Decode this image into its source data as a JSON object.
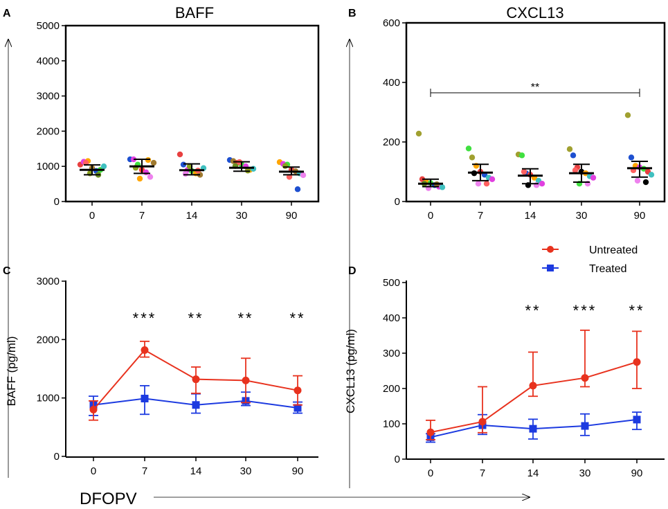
{
  "chart_data": [
    {
      "id": "A",
      "panel_label": "A",
      "type": "scatter",
      "title": "BAFF",
      "categories": [
        "0",
        "7",
        "14",
        "30",
        "90"
      ],
      "yticks": [
        "0",
        "1000",
        "2000",
        "3000",
        "4000",
        "5000"
      ],
      "ylim": [
        0,
        5000
      ],
      "means": [
        900,
        1000,
        890,
        960,
        850
      ],
      "err_low": [
        760,
        800,
        760,
        860,
        760
      ],
      "err_high": [
        1040,
        1200,
        1070,
        1130,
        980
      ],
      "points": [
        [
          {
            "v": 1050,
            "c": "#e84040"
          },
          {
            "v": 1130,
            "c": "#e040e0"
          },
          {
            "v": 1150,
            "c": "#ffa500"
          },
          {
            "v": 950,
            "c": "#a07a30"
          },
          {
            "v": 870,
            "c": "#1e50d0"
          },
          {
            "v": 900,
            "c": "#40e040"
          },
          {
            "v": 1000,
            "c": "#40c0c0"
          },
          {
            "v": 800,
            "c": "#8aa020"
          },
          {
            "v": 760,
            "c": "#6b8e23"
          },
          {
            "v": 1100,
            "c": "#ff6060"
          }
        ],
        [
          {
            "v": 1200,
            "c": "#1e50d0"
          },
          {
            "v": 1200,
            "c": "#e040e0"
          },
          {
            "v": 1050,
            "c": "#40e040"
          },
          {
            "v": 900,
            "c": "#ff4040"
          },
          {
            "v": 830,
            "c": "#e040e0"
          },
          {
            "v": 700,
            "c": "#ee82ee"
          },
          {
            "v": 1100,
            "c": "#a07a30"
          },
          {
            "v": 650,
            "c": "#ffa500"
          },
          {
            "v": 1180,
            "c": "#ffa500"
          },
          {
            "v": 960,
            "c": "#8aa020"
          }
        ],
        [
          {
            "v": 1340,
            "c": "#e84040"
          },
          {
            "v": 1050,
            "c": "#1e50d0"
          },
          {
            "v": 900,
            "c": "#e040e0"
          },
          {
            "v": 870,
            "c": "#40e040"
          },
          {
            "v": 800,
            "c": "#ffa500"
          },
          {
            "v": 760,
            "c": "#a07a30"
          },
          {
            "v": 950,
            "c": "#40c0c0"
          },
          {
            "v": 1000,
            "c": "#8aa020"
          },
          {
            "v": 880,
            "c": "#ff6060"
          },
          {
            "v": 790,
            "c": "#ee82ee"
          }
        ],
        [
          {
            "v": 1180,
            "c": "#1e50d0"
          },
          {
            "v": 1150,
            "c": "#a07a30"
          },
          {
            "v": 1100,
            "c": "#e84040"
          },
          {
            "v": 1050,
            "c": "#40e040"
          },
          {
            "v": 1000,
            "c": "#e040e0"
          },
          {
            "v": 900,
            "c": "#ffa500"
          },
          {
            "v": 930,
            "c": "#40c0c0"
          },
          {
            "v": 1120,
            "c": "#ff6060"
          },
          {
            "v": 880,
            "c": "#8aa020"
          },
          {
            "v": 1010,
            "c": "#6b8e23"
          }
        ],
        [
          {
            "v": 1120,
            "c": "#ffa500"
          },
          {
            "v": 1070,
            "c": "#e040e0"
          },
          {
            "v": 1050,
            "c": "#40e040"
          },
          {
            "v": 900,
            "c": "#e84040"
          },
          {
            "v": 860,
            "c": "#a07a30"
          },
          {
            "v": 800,
            "c": "#40c0c0"
          },
          {
            "v": 750,
            "c": "#ee82ee"
          },
          {
            "v": 700,
            "c": "#ff6060"
          },
          {
            "v": 350,
            "c": "#1e50d0"
          },
          {
            "v": 1010,
            "c": "#8aa020"
          }
        ]
      ]
    },
    {
      "id": "B",
      "panel_label": "B",
      "type": "scatter",
      "title": "CXCL13",
      "categories": [
        "0",
        "7",
        "14",
        "30",
        "90"
      ],
      "yticks": [
        "0",
        "200",
        "400",
        "600"
      ],
      "ylim": [
        0,
        600
      ],
      "means": [
        60,
        97,
        87,
        95,
        112
      ],
      "err_low": [
        50,
        70,
        60,
        65,
        82
      ],
      "err_high": [
        75,
        125,
        110,
        125,
        135
      ],
      "significance": {
        "from": 0,
        "to": 4,
        "label": "**"
      },
      "points": [
        [
          {
            "v": 228,
            "c": "#a0a030"
          },
          {
            "v": 75,
            "c": "#e84040"
          },
          {
            "v": 65,
            "c": "#ffa500"
          },
          {
            "v": 62,
            "c": "#40e040"
          },
          {
            "v": 55,
            "c": "#1e50d0"
          },
          {
            "v": 50,
            "c": "#e040e0"
          },
          {
            "v": 48,
            "c": "#40c0c0"
          },
          {
            "v": 45,
            "c": "#ee82ee"
          },
          {
            "v": 58,
            "c": "#a07a30"
          },
          {
            "v": 60,
            "c": "#6b8e23"
          }
        ],
        [
          {
            "v": 178,
            "c": "#40e040"
          },
          {
            "v": 148,
            "c": "#a0a030"
          },
          {
            "v": 120,
            "c": "#ffa500"
          },
          {
            "v": 100,
            "c": "#e84040"
          },
          {
            "v": 90,
            "c": "#1e50d0"
          },
          {
            "v": 80,
            "c": "#40c0c0"
          },
          {
            "v": 75,
            "c": "#e040e0"
          },
          {
            "v": 60,
            "c": "#ee82ee"
          },
          {
            "v": 60,
            "c": "#ff6060"
          },
          {
            "v": 95,
            "c": "#000000"
          }
        ],
        [
          {
            "v": 158,
            "c": "#a0a030"
          },
          {
            "v": 155,
            "c": "#40e040"
          },
          {
            "v": 95,
            "c": "#1e50d0"
          },
          {
            "v": 90,
            "c": "#e84040"
          },
          {
            "v": 80,
            "c": "#ffa500"
          },
          {
            "v": 70,
            "c": "#40c0c0"
          },
          {
            "v": 60,
            "c": "#e040e0"
          },
          {
            "v": 55,
            "c": "#000000"
          },
          {
            "v": 55,
            "c": "#ee82ee"
          },
          {
            "v": 100,
            "c": "#ff6060"
          }
        ],
        [
          {
            "v": 176,
            "c": "#a0a030"
          },
          {
            "v": 155,
            "c": "#1e50d0"
          },
          {
            "v": 115,
            "c": "#e84040"
          },
          {
            "v": 100,
            "c": "#000000"
          },
          {
            "v": 95,
            "c": "#ffa500"
          },
          {
            "v": 85,
            "c": "#40c0c0"
          },
          {
            "v": 80,
            "c": "#e040e0"
          },
          {
            "v": 60,
            "c": "#40e040"
          },
          {
            "v": 60,
            "c": "#ee82ee"
          },
          {
            "v": 105,
            "c": "#ff6060"
          }
        ],
        [
          {
            "v": 290,
            "c": "#a0a030"
          },
          {
            "v": 148,
            "c": "#1e50d0"
          },
          {
            "v": 120,
            "c": "#ffa500"
          },
          {
            "v": 115,
            "c": "#e040e0"
          },
          {
            "v": 110,
            "c": "#40e040"
          },
          {
            "v": 100,
            "c": "#e84040"
          },
          {
            "v": 90,
            "c": "#40c0c0"
          },
          {
            "v": 70,
            "c": "#ee82ee"
          },
          {
            "v": 65,
            "c": "#000000"
          },
          {
            "v": 105,
            "c": "#ff6060"
          }
        ]
      ]
    },
    {
      "id": "C",
      "panel_label": "C",
      "type": "line",
      "ylabel": "BAFF (pg/ml)",
      "categories": [
        "0",
        "7",
        "14",
        "30",
        "90"
      ],
      "yticks": [
        "0",
        "1000",
        "2000",
        "3000"
      ],
      "ylim": [
        0,
        3000
      ],
      "significance": [
        "",
        "***",
        "**",
        "**",
        "**"
      ],
      "series": [
        {
          "name": "Untreated",
          "color": "#e8321e",
          "marker": "circle",
          "values": [
            800,
            1820,
            1320,
            1300,
            1130
          ],
          "err_low": [
            620,
            1700,
            1080,
            920,
            880
          ],
          "err_high": [
            950,
            1970,
            1530,
            1680,
            1380
          ]
        },
        {
          "name": "Treated",
          "color": "#1c3ae0",
          "marker": "square",
          "values": [
            880,
            990,
            880,
            950,
            830
          ],
          "err_low": [
            700,
            720,
            740,
            870,
            740
          ],
          "err_high": [
            1030,
            1210,
            1070,
            1100,
            930
          ]
        }
      ]
    },
    {
      "id": "D",
      "panel_label": "D",
      "type": "line",
      "ylabel": "CXCL13 (pg/ml)",
      "categories": [
        "0",
        "7",
        "14",
        "30",
        "90"
      ],
      "yticks": [
        "0",
        "100",
        "200",
        "300",
        "400",
        "500"
      ],
      "ylim": [
        0,
        500
      ],
      "significance": [
        "",
        "",
        "**",
        "***",
        "**"
      ],
      "series": [
        {
          "name": "Untreated",
          "color": "#e8321e",
          "marker": "circle",
          "values": [
            76,
            106,
            208,
            230,
            275
          ],
          "err_low": [
            55,
            75,
            178,
            205,
            200
          ],
          "err_high": [
            110,
            205,
            303,
            365,
            362
          ]
        },
        {
          "name": "Treated",
          "color": "#1c3ae0",
          "marker": "square",
          "values": [
            62,
            96,
            86,
            94,
            112
          ],
          "err_low": [
            48,
            70,
            57,
            67,
            84
          ],
          "err_high": [
            72,
            126,
            113,
            128,
            133
          ]
        }
      ]
    }
  ],
  "legend": {
    "entries": [
      {
        "label": "Untreated",
        "color": "#e8321e",
        "marker": "circle"
      },
      {
        "label": "Treated",
        "color": "#1c3ae0",
        "marker": "square"
      }
    ]
  },
  "axis_label_x": "DFOPV"
}
